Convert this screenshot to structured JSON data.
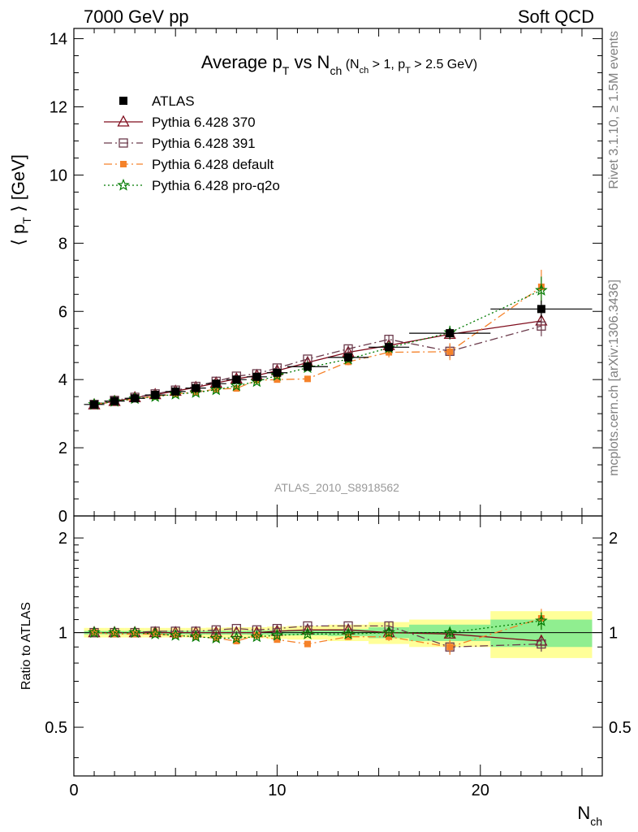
{
  "header": {
    "left": "7000 GeV pp",
    "right": "Soft QCD"
  },
  "side_labels": {
    "top": "Rivet 3.1.10, ≥ 1.5M events",
    "bottom": "mcplots.cern.ch [arXiv:1306.3436]"
  },
  "analysis_id": "ATLAS_2010_S8918562",
  "chart_data": [
    {
      "type": "line",
      "title": {
        "main": "Average p",
        "main_sub": "T",
        "vs": " vs N",
        "vs_sub": "ch",
        "cut_open": " (N",
        "cut_sub1": "ch",
        "cut_mid": " > 1, p",
        "cut_sub2": "T",
        "cut_close": " > 2.5 GeV)"
      },
      "ylabel": {
        "open": "⟨ p",
        "sub": "T",
        "close": " ⟩ [GeV]"
      },
      "ylim": [
        0,
        14.3
      ],
      "xlim": [
        0,
        26
      ],
      "yticks": [
        0,
        2,
        4,
        6,
        8,
        10,
        12,
        14
      ],
      "ytick_labels": [
        "0",
        "2",
        "4",
        "6",
        "8",
        "10",
        "12",
        "14"
      ],
      "legend_position": "top-left",
      "x": [
        1,
        2,
        3,
        4,
        5,
        6,
        7,
        8,
        9,
        10,
        11.5,
        13.5,
        15.5,
        18.5,
        23
      ],
      "series": [
        {
          "name": "ATLAS",
          "color": "#000000",
          "marker": "filled-square",
          "values": [
            3.27,
            3.37,
            3.45,
            3.55,
            3.65,
            3.75,
            3.88,
            4.0,
            4.08,
            4.2,
            4.38,
            4.65,
            4.95,
            5.36,
            6.07
          ],
          "errors": [
            0.03,
            0.03,
            0.03,
            0.03,
            0.04,
            0.04,
            0.04,
            0.05,
            0.05,
            0.06,
            0.07,
            0.08,
            0.1,
            0.15,
            0.25
          ],
          "xerr": [
            0.5,
            0.5,
            0.5,
            0.5,
            0.5,
            0.5,
            0.5,
            0.5,
            0.5,
            0.5,
            1,
            1,
            1,
            2,
            2.5
          ]
        },
        {
          "name": "Pythia 6.428 370",
          "color": "#7f0c1c",
          "marker": "open-triangle",
          "dash": "",
          "values": [
            3.26,
            3.36,
            3.47,
            3.56,
            3.66,
            3.77,
            3.9,
            4.02,
            4.12,
            4.26,
            4.5,
            4.8,
            5.0,
            5.33,
            5.72
          ],
          "errors": [
            0.03,
            0.03,
            0.03,
            0.03,
            0.04,
            0.04,
            0.05,
            0.05,
            0.06,
            0.06,
            0.08,
            0.1,
            0.12,
            0.15,
            0.2
          ]
        },
        {
          "name": "Pythia 6.428 391",
          "color": "#6b3a4b",
          "marker": "open-square",
          "dash": "10,4,2,4",
          "values": [
            3.27,
            3.39,
            3.48,
            3.58,
            3.69,
            3.8,
            3.95,
            4.1,
            4.17,
            4.34,
            4.6,
            4.9,
            5.18,
            4.83,
            5.57
          ],
          "errors": [
            0.03,
            0.03,
            0.03,
            0.04,
            0.04,
            0.04,
            0.05,
            0.05,
            0.06,
            0.07,
            0.08,
            0.1,
            0.12,
            0.2,
            0.3
          ]
        },
        {
          "name": "Pythia 6.428 default",
          "color": "#f5822a",
          "marker": "filled-square-small",
          "dash": "10,4,2,4",
          "values": [
            3.26,
            3.35,
            3.43,
            3.51,
            3.58,
            3.63,
            3.72,
            3.74,
            3.98,
            4.0,
            4.02,
            4.52,
            4.8,
            4.82,
            6.72
          ],
          "errors": [
            0.03,
            0.03,
            0.03,
            0.03,
            0.04,
            0.04,
            0.05,
            0.05,
            0.06,
            0.07,
            0.08,
            0.1,
            0.15,
            0.25,
            0.5
          ]
        },
        {
          "name": "Pythia 6.428 pro-q2o",
          "color": "#007a00",
          "marker": "open-star",
          "dash": "2,3",
          "values": [
            3.27,
            3.36,
            3.44,
            3.5,
            3.57,
            3.62,
            3.7,
            3.82,
            3.94,
            4.12,
            4.35,
            4.6,
            4.93,
            5.38,
            6.62
          ],
          "errors": [
            0.03,
            0.03,
            0.03,
            0.03,
            0.04,
            0.04,
            0.05,
            0.05,
            0.06,
            0.07,
            0.08,
            0.1,
            0.15,
            0.2,
            0.4
          ]
        }
      ]
    },
    {
      "type": "line",
      "ylabel": "Ratio to ATLAS",
      "ylim": [
        0.35,
        2.35
      ],
      "yscale": "log",
      "xlim": [
        0,
        26
      ],
      "xlabel": {
        "main": "N",
        "sub": "ch"
      },
      "xticks": [
        0,
        10,
        20
      ],
      "xtick_labels": [
        "0",
        "10",
        "20"
      ],
      "yticks": [
        0.5,
        1,
        2
      ],
      "ytick_labels": [
        "0.5",
        "1",
        "2"
      ],
      "bands": {
        "inner_color": "#90ee90",
        "outer_color": "#ffff99",
        "x_low": [
          0.5,
          1.5,
          2.5,
          3.5,
          4.5,
          5.5,
          6.5,
          7.5,
          8.5,
          9.5,
          10.5,
          12.5,
          14.5,
          16.5,
          20.5
        ],
        "x_high": [
          1.5,
          2.5,
          3.5,
          4.5,
          5.5,
          6.5,
          7.5,
          8.5,
          9.5,
          10.5,
          12.5,
          14.5,
          16.5,
          20.5,
          25.5
        ],
        "inner": [
          0.012,
          0.012,
          0.012,
          0.012,
          0.014,
          0.014,
          0.015,
          0.015,
          0.016,
          0.018,
          0.02,
          0.025,
          0.04,
          0.06,
          0.1
        ],
        "outer": [
          0.035,
          0.035,
          0.035,
          0.035,
          0.035,
          0.035,
          0.037,
          0.04,
          0.04,
          0.045,
          0.05,
          0.06,
          0.08,
          0.1,
          0.17
        ]
      },
      "x": [
        1,
        2,
        3,
        4,
        5,
        6,
        7,
        8,
        9,
        10,
        11.5,
        13.5,
        15.5,
        18.5,
        23
      ],
      "series": [
        {
          "name": "Pythia 6.428 370",
          "color": "#7f0c1c",
          "marker": "open-triangle",
          "dash": "",
          "values": [
            1.0,
            1.0,
            1.0,
            1.0,
            1.0,
            1.0,
            1.0,
            1.0,
            1.0,
            1.01,
            1.02,
            1.02,
            1.0,
            0.99,
            0.94
          ],
          "errors": [
            0.01,
            0.01,
            0.01,
            0.01,
            0.01,
            0.01,
            0.01,
            0.01,
            0.01,
            0.01,
            0.02,
            0.02,
            0.02,
            0.03,
            0.04
          ]
        },
        {
          "name": "Pythia 6.428 391",
          "color": "#6b3a4b",
          "marker": "open-square",
          "dash": "10,4,2,4",
          "values": [
            1.0,
            1.0,
            1.0,
            1.01,
            1.01,
            1.01,
            1.02,
            1.03,
            1.02,
            1.03,
            1.05,
            1.05,
            1.05,
            0.9,
            0.92
          ],
          "errors": [
            0.01,
            0.01,
            0.01,
            0.01,
            0.01,
            0.01,
            0.01,
            0.01,
            0.01,
            0.02,
            0.02,
            0.02,
            0.03,
            0.04,
            0.05
          ]
        },
        {
          "name": "Pythia 6.428 default",
          "color": "#f5822a",
          "marker": "filled-square-small",
          "dash": "10,4,2,4",
          "values": [
            1.0,
            0.99,
            0.99,
            0.99,
            0.98,
            0.97,
            0.96,
            0.94,
            0.98,
            0.95,
            0.92,
            0.97,
            0.97,
            0.9,
            1.11
          ],
          "errors": [
            0.01,
            0.01,
            0.01,
            0.01,
            0.01,
            0.01,
            0.01,
            0.01,
            0.01,
            0.02,
            0.02,
            0.02,
            0.03,
            0.05,
            0.08
          ]
        },
        {
          "name": "Pythia 6.428 pro-q2o",
          "color": "#007a00",
          "marker": "open-star",
          "dash": "2,3",
          "values": [
            1.0,
            1.0,
            1.0,
            0.99,
            0.98,
            0.97,
            0.96,
            0.96,
            0.97,
            0.98,
            0.99,
            0.99,
            1.0,
            1.0,
            1.09
          ],
          "errors": [
            0.01,
            0.01,
            0.01,
            0.01,
            0.01,
            0.01,
            0.01,
            0.01,
            0.01,
            0.02,
            0.02,
            0.02,
            0.03,
            0.04,
            0.07
          ]
        }
      ]
    }
  ]
}
